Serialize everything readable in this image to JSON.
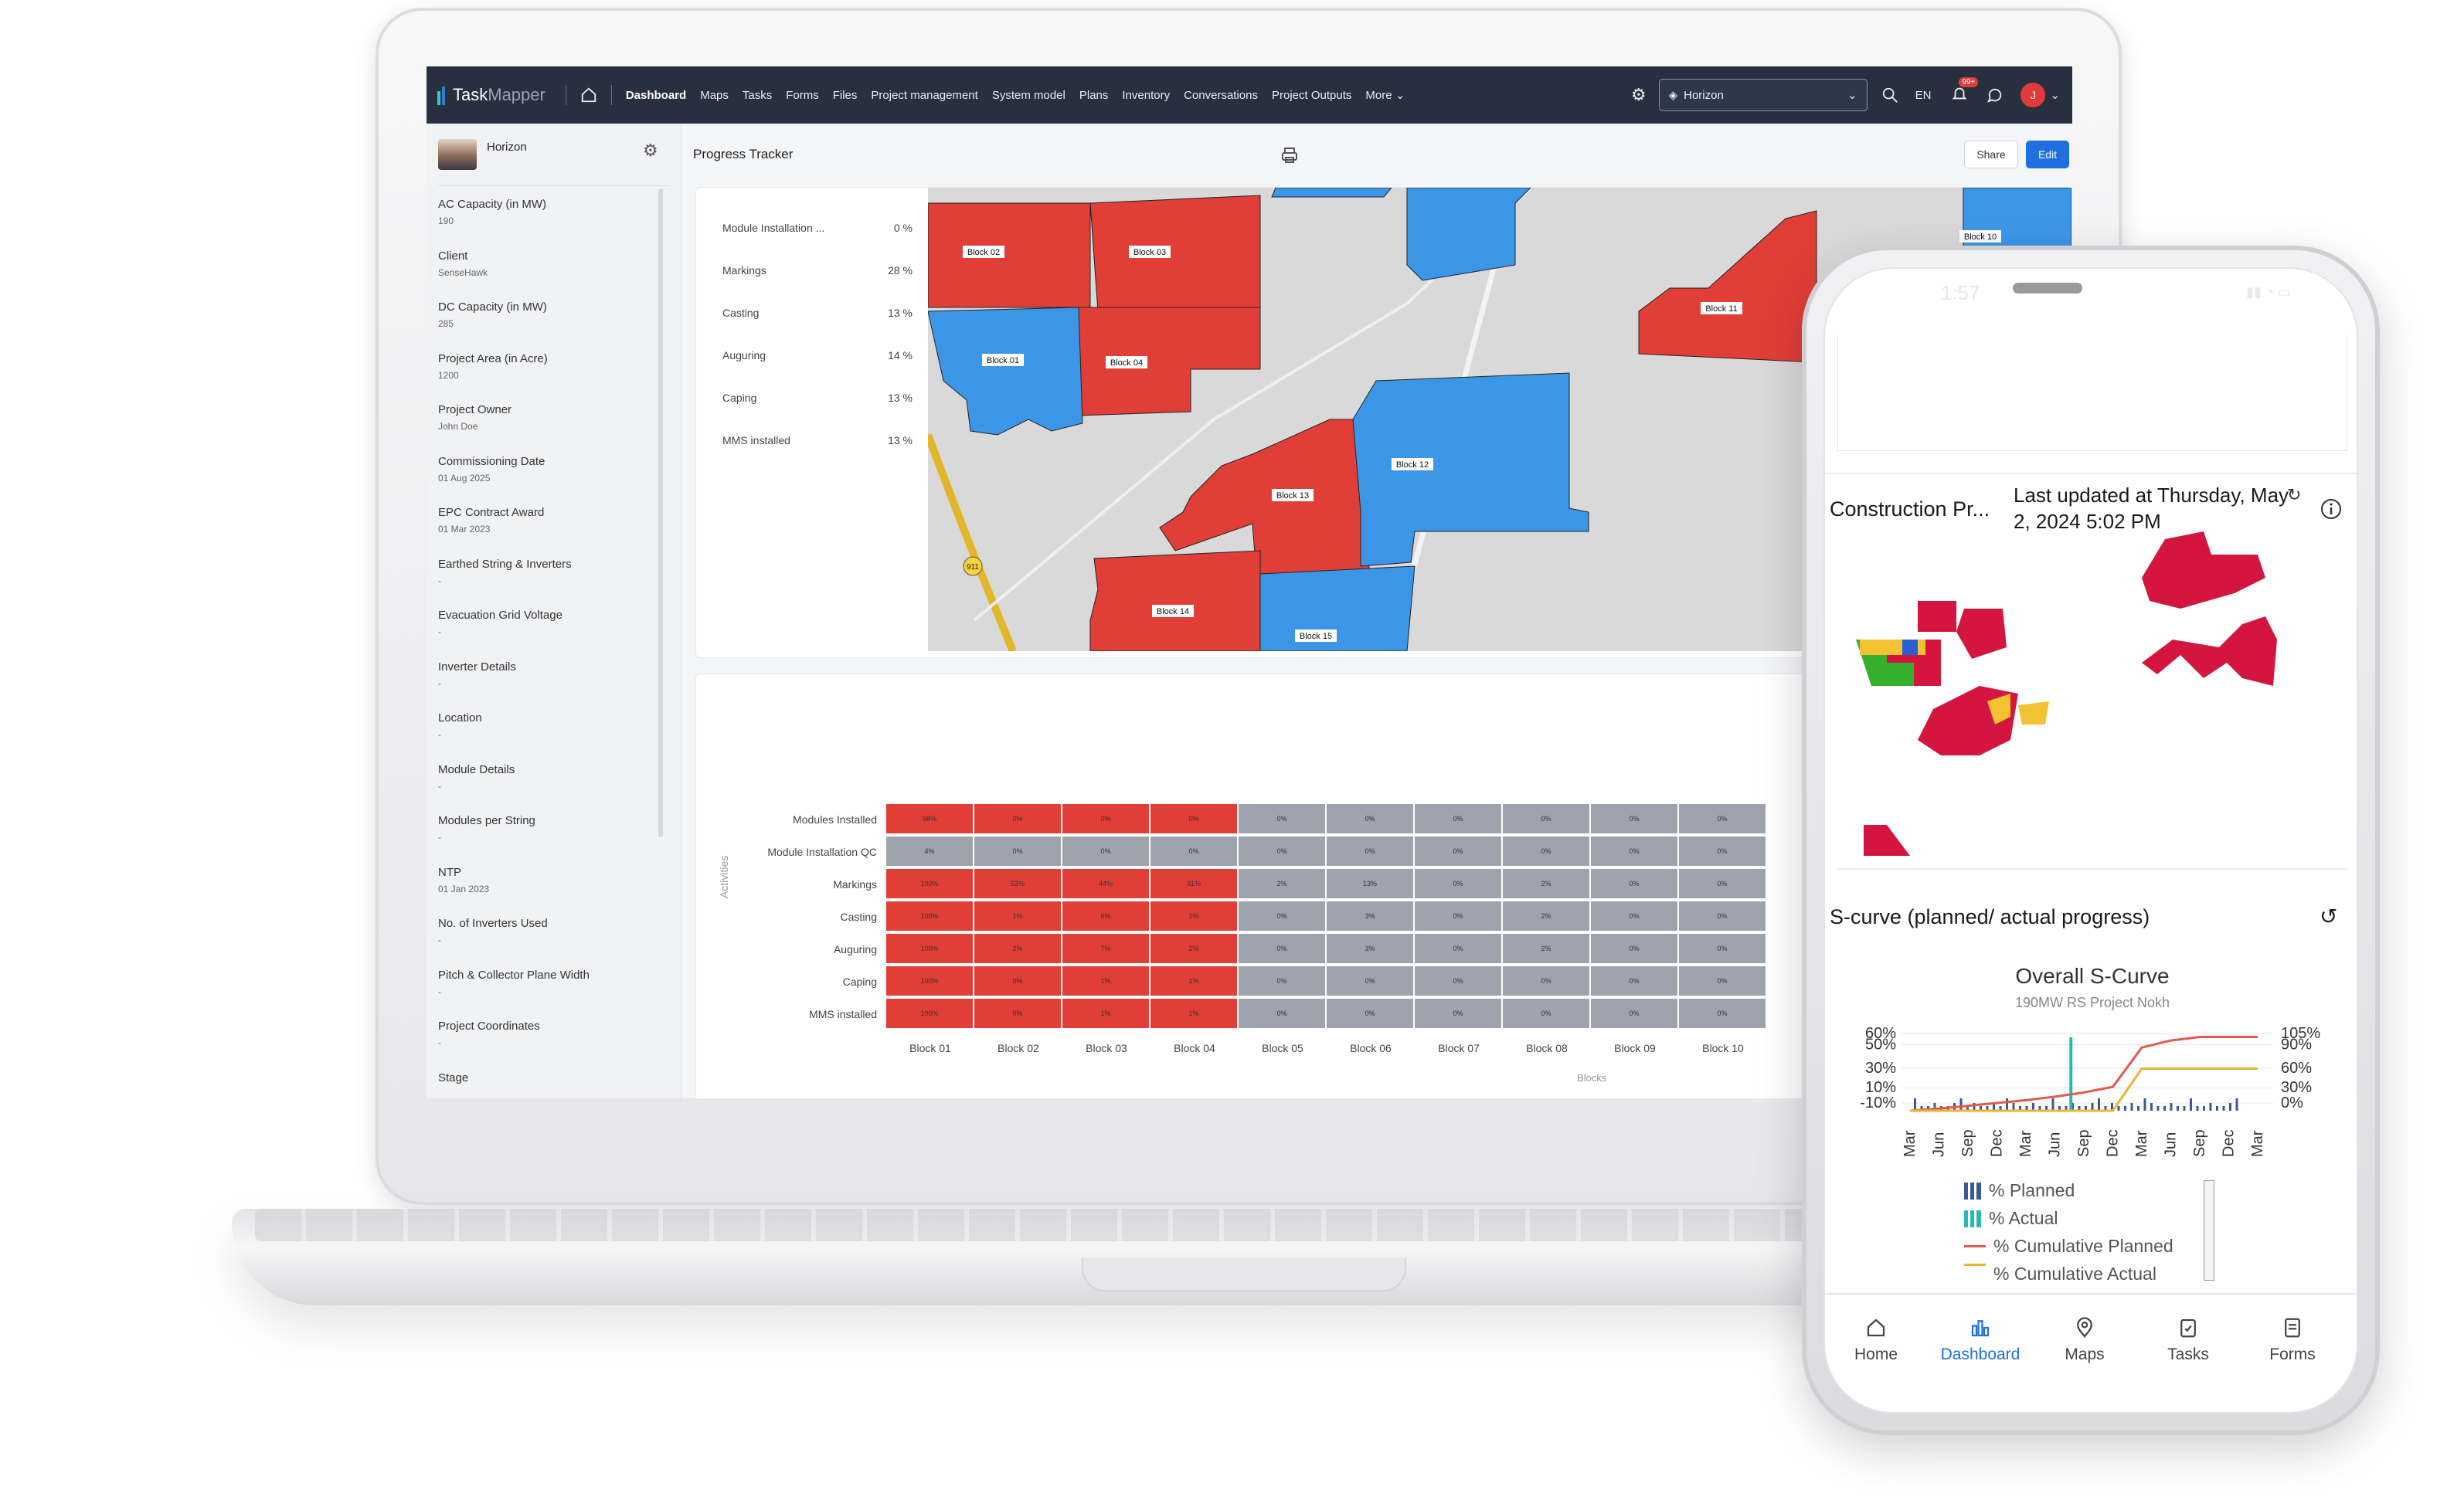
{
  "app": {
    "logo_task": "Task",
    "logo_mapper": "Mapper",
    "nav": [
      "Dashboard",
      "Maps",
      "Tasks",
      "Forms",
      "Files",
      "Project management",
      "System model",
      "Plans",
      "Inventory",
      "Conversations",
      "Project Outputs",
      "More"
    ],
    "project_select": "Horizon",
    "language": "EN",
    "notification_badge": "99+",
    "avatar_initial": "J"
  },
  "sidebar": {
    "project_name": "Horizon",
    "properties": [
      {
        "label": "AC Capacity (in MW)",
        "value": "190"
      },
      {
        "label": "Client",
        "value": "SenseHawk"
      },
      {
        "label": "DC Capacity (in MW)",
        "value": "285"
      },
      {
        "label": "Project Area (in Acre)",
        "value": "1200"
      },
      {
        "label": "Project Owner",
        "value": "John Doe"
      },
      {
        "label": "Commissioning Date",
        "value": "01 Aug 2025"
      },
      {
        "label": "EPC Contract Award",
        "value": "01 Mar 2023"
      },
      {
        "label": "Earthed String & Inverters",
        "value": "-"
      },
      {
        "label": "Evacuation Grid Voltage",
        "value": "-"
      },
      {
        "label": "Inverter Details",
        "value": "-"
      },
      {
        "label": "Location",
        "value": "-"
      },
      {
        "label": "Module Details",
        "value": "-"
      },
      {
        "label": "Modules per String",
        "value": "-"
      },
      {
        "label": "NTP",
        "value": "01 Jan 2023"
      },
      {
        "label": "No. of Inverters Used",
        "value": "-"
      },
      {
        "label": "Pitch & Collector Plane Width",
        "value": "-"
      },
      {
        "label": "Project Coordinates",
        "value": "-"
      },
      {
        "label": "Stage",
        "value": ""
      }
    ]
  },
  "main": {
    "title": "Progress Tracker",
    "share_label": "Share",
    "edit_label": "Edit",
    "progress_items": [
      {
        "label": "Module Installation ...",
        "value": "0 %"
      },
      {
        "label": "Markings",
        "value": "28 %"
      },
      {
        "label": "Casting",
        "value": "13 %"
      },
      {
        "label": "Auguring",
        "value": "14 %"
      },
      {
        "label": "Caping",
        "value": "13 %"
      },
      {
        "label": "MMS installed",
        "value": "13 %"
      }
    ],
    "map_blocks": [
      "Block 01",
      "Block 02",
      "Block 03",
      "Block 04",
      "Block 10",
      "Block 11",
      "Block 12",
      "Block 13",
      "Block 14",
      "Block 15"
    ],
    "map_road_label": "911",
    "heatmap": {
      "y_axis_label": "Activities",
      "x_axis_label": "Blocks",
      "rows": [
        "Modules Installed",
        "Module Installation QC",
        "Markings",
        "Casting",
        "Auguring",
        "Caping",
        "MMS installed"
      ],
      "cols": [
        "Block 01",
        "Block 02",
        "Block 03",
        "Block 04",
        "Block 05",
        "Block 06",
        "Block 07",
        "Block 08",
        "Block 09",
        "Block 10"
      ],
      "values": [
        [
          "98%",
          "0%",
          "0%",
          "0%",
          "0%",
          "0%",
          "0%",
          "0%",
          "0%",
          "0%"
        ],
        [
          "4%",
          "0%",
          "0%",
          "0%",
          "0%",
          "0%",
          "0%",
          "0%",
          "0%",
          "0%"
        ],
        [
          "100%",
          "53%",
          "44%",
          "31%",
          "2%",
          "13%",
          "0%",
          "2%",
          "0%",
          "0%"
        ],
        [
          "100%",
          "1%",
          "6%",
          "1%",
          "0%",
          "3%",
          "0%",
          "2%",
          "0%",
          "0%"
        ],
        [
          "100%",
          "2%",
          "7%",
          "2%",
          "0%",
          "3%",
          "0%",
          "2%",
          "0%",
          "0%"
        ],
        [
          "100%",
          "0%",
          "1%",
          "1%",
          "0%",
          "0%",
          "0%",
          "0%",
          "0%",
          "0%"
        ],
        [
          "100%",
          "0%",
          "1%",
          "1%",
          "0%",
          "0%",
          "0%",
          "0%",
          "0%",
          "0%"
        ]
      ]
    }
  },
  "phone": {
    "status_time": "1:57",
    "construction_title": "Construction Pr...",
    "last_updated": "Last updated at Thursday, May 2, 2024 5:02 PM",
    "scurve_title": "S-curve (planned/ actual progress)",
    "tabs": [
      "Home",
      "Dashboard",
      "Maps",
      "Tasks",
      "Forms"
    ],
    "active_tab": "Dashboard"
  },
  "chart_data": {
    "type": "line",
    "title": "Overall S-Curve",
    "subtitle": "190MW RS Project Nokh",
    "x": [
      "Mar",
      "Jun",
      "Sep",
      "Dec",
      "Mar",
      "Jun",
      "Sep",
      "Dec",
      "Mar",
      "Jun",
      "Sep",
      "Dec",
      "Mar"
    ],
    "y_left_ticks": [
      "60%",
      "50%",
      "30%",
      "10%",
      "-10%"
    ],
    "y_right_ticks": [
      "105%",
      "90%",
      "60%",
      "30%",
      "0%"
    ],
    "legend": [
      "% Planned",
      "% Actual",
      "% Cumulative Planned",
      "% Cumulative Actual"
    ],
    "legend_placement": "bottom",
    "colors": {
      "planned": "#3b5998",
      "actual": "#2ab7b7",
      "cum_planned": "#e05a4e",
      "cum_actual": "#e8b630"
    },
    "series": [
      {
        "name": "% Cumulative Planned",
        "values": [
          0,
          3,
          7,
          11,
          15,
          20,
          26,
          34,
          90,
          100,
          105,
          105,
          105
        ]
      },
      {
        "name": "% Cumulative Actual",
        "values": [
          0,
          0,
          0,
          0,
          0,
          0,
          0,
          0,
          60,
          60,
          60,
          60,
          60
        ]
      }
    ]
  }
}
